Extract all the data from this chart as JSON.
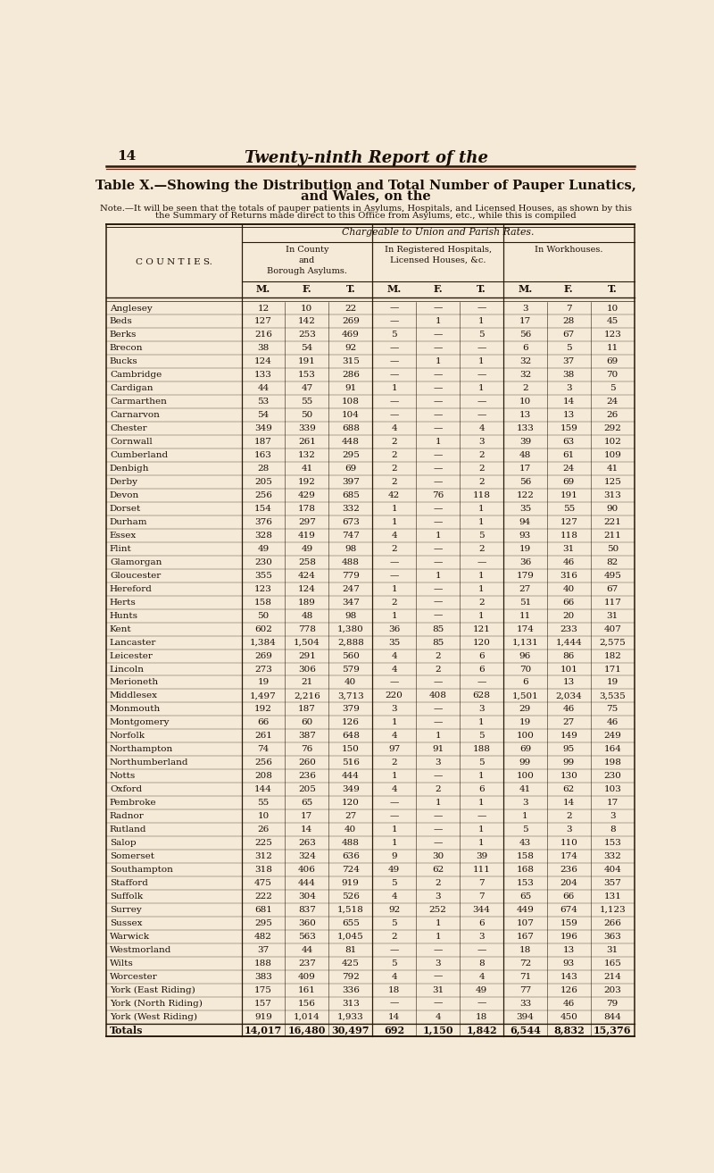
{
  "page_number": "14",
  "page_title": "Twenty-ninth Report of the",
  "table_title_line1": "Table X.—Showing the Distribution and Total Number of Pauper Lunatics,",
  "table_title_line2": "and Wales, on the",
  "note_line1": "Note.—It will be seen that the totals of pauper patients in Asylums, Hospitals, and Licensed Houses, as shown by this",
  "note_line2": "the Summary of Returns made direct to this Office from Asylums, etc., while this is compiled",
  "chargeable_header": "Chargeable to Union and Parish Rates.",
  "col_group1": [
    "In County",
    "and",
    "Borough Asylums."
  ],
  "col_group2": [
    "In Registered Hospitals,",
    "Licensed Houses, &c."
  ],
  "col_group3": [
    "In Workhouses."
  ],
  "counties": [
    "Anglesey",
    "Beds",
    "Berks",
    "Brecon",
    "Bucks",
    "Cambridge",
    "Cardigan",
    "Carmarthen",
    "Carnarvon",
    "Chester",
    "Cornwall",
    "Cumberland",
    "Denbigh",
    "Derby",
    "Devon",
    "Dorset",
    "Durham",
    "Essex",
    "Flint",
    "Glamorgan",
    "Gloucester",
    "Hereford",
    "Herts",
    "Hunts",
    "Kent",
    "Lancaster",
    "Leicester",
    "Lincoln",
    "Merioneth",
    "Middlesex",
    "Monmouth",
    "Montgomery",
    "Norfolk",
    "Northampton",
    "Northumberland",
    "Notts",
    "Oxford",
    "Pembroke",
    "Radnor",
    "Rutland",
    "Salop",
    "Somerset",
    "Southampton",
    "Stafford",
    "Suffolk",
    "Surrey",
    "Sussex",
    "Warwick",
    "Westmorland",
    "Wilts",
    "Worcester",
    "York (East Riding)",
    "York (North Riding)",
    "York (West Riding)",
    "Totals"
  ],
  "data": [
    [
      12,
      10,
      22,
      "-",
      "-",
      "-",
      3,
      7,
      10
    ],
    [
      127,
      142,
      269,
      "-",
      1,
      1,
      17,
      28,
      45
    ],
    [
      216,
      253,
      469,
      5,
      "-",
      5,
      56,
      67,
      123
    ],
    [
      38,
      54,
      92,
      "-",
      "-",
      "-",
      6,
      5,
      11
    ],
    [
      124,
      191,
      315,
      "-",
      1,
      1,
      32,
      37,
      69
    ],
    [
      133,
      153,
      286,
      "-",
      "-",
      "-",
      32,
      38,
      70
    ],
    [
      44,
      47,
      91,
      1,
      "-",
      1,
      2,
      3,
      5
    ],
    [
      53,
      55,
      108,
      "-",
      "-",
      "-",
      10,
      14,
      24
    ],
    [
      54,
      50,
      104,
      "-",
      "-",
      "-",
      13,
      13,
      26
    ],
    [
      349,
      339,
      688,
      4,
      "-",
      4,
      133,
      159,
      292
    ],
    [
      187,
      261,
      448,
      2,
      1,
      3,
      39,
      63,
      102
    ],
    [
      163,
      132,
      295,
      2,
      "-",
      2,
      48,
      61,
      109
    ],
    [
      28,
      41,
      69,
      2,
      "-",
      2,
      17,
      24,
      41
    ],
    [
      205,
      192,
      397,
      2,
      "-",
      2,
      56,
      69,
      125
    ],
    [
      256,
      429,
      685,
      42,
      76,
      118,
      122,
      191,
      313
    ],
    [
      154,
      178,
      332,
      1,
      "-",
      1,
      35,
      55,
      90
    ],
    [
      376,
      297,
      673,
      1,
      "-",
      1,
      94,
      127,
      221
    ],
    [
      328,
      419,
      747,
      4,
      1,
      5,
      93,
      118,
      211
    ],
    [
      49,
      49,
      98,
      2,
      "-",
      2,
      19,
      31,
      50
    ],
    [
      230,
      258,
      488,
      "-",
      "-",
      "-",
      36,
      46,
      82
    ],
    [
      355,
      424,
      779,
      "-",
      1,
      1,
      179,
      316,
      495
    ],
    [
      123,
      124,
      247,
      1,
      "-",
      1,
      27,
      40,
      67
    ],
    [
      158,
      189,
      347,
      2,
      "-",
      2,
      51,
      66,
      117
    ],
    [
      50,
      48,
      98,
      1,
      "-",
      1,
      11,
      20,
      31
    ],
    [
      602,
      778,
      1380,
      36,
      85,
      121,
      174,
      233,
      407
    ],
    [
      1384,
      1504,
      2888,
      35,
      85,
      120,
      1131,
      1444,
      2575
    ],
    [
      269,
      291,
      560,
      4,
      2,
      6,
      96,
      86,
      182
    ],
    [
      273,
      306,
      579,
      4,
      2,
      6,
      70,
      101,
      171
    ],
    [
      19,
      21,
      40,
      "-",
      "-",
      "-",
      6,
      13,
      19
    ],
    [
      1497,
      2216,
      3713,
      220,
      408,
      628,
      1501,
      2034,
      3535
    ],
    [
      192,
      187,
      379,
      3,
      "-",
      3,
      29,
      46,
      75
    ],
    [
      66,
      60,
      126,
      1,
      "-",
      1,
      19,
      27,
      46
    ],
    [
      261,
      387,
      648,
      4,
      1,
      5,
      100,
      149,
      249
    ],
    [
      74,
      76,
      150,
      97,
      91,
      188,
      69,
      95,
      164
    ],
    [
      256,
      260,
      516,
      2,
      3,
      5,
      99,
      99,
      198
    ],
    [
      208,
      236,
      444,
      1,
      "-",
      1,
      100,
      130,
      230
    ],
    [
      144,
      205,
      349,
      4,
      2,
      6,
      41,
      62,
      103
    ],
    [
      55,
      65,
      120,
      "-",
      1,
      1,
      3,
      14,
      17
    ],
    [
      10,
      17,
      27,
      "-",
      "-",
      "-",
      1,
      2,
      3
    ],
    [
      26,
      14,
      40,
      1,
      "-",
      1,
      5,
      3,
      8
    ],
    [
      225,
      263,
      488,
      1,
      "-",
      1,
      43,
      110,
      153
    ],
    [
      312,
      324,
      636,
      9,
      30,
      39,
      158,
      174,
      332
    ],
    [
      318,
      406,
      724,
      49,
      62,
      111,
      168,
      236,
      404
    ],
    [
      475,
      444,
      919,
      5,
      2,
      7,
      153,
      204,
      357
    ],
    [
      222,
      304,
      526,
      4,
      3,
      7,
      65,
      66,
      131
    ],
    [
      681,
      837,
      1518,
      92,
      252,
      344,
      449,
      674,
      1123
    ],
    [
      295,
      360,
      655,
      5,
      1,
      6,
      107,
      159,
      266
    ],
    [
      482,
      563,
      1045,
      2,
      1,
      3,
      167,
      196,
      363
    ],
    [
      37,
      44,
      81,
      "-",
      "-",
      "-",
      18,
      13,
      31
    ],
    [
      188,
      237,
      425,
      5,
      3,
      8,
      72,
      93,
      165
    ],
    [
      383,
      409,
      792,
      4,
      "-",
      4,
      71,
      143,
      214
    ],
    [
      175,
      161,
      336,
      18,
      31,
      49,
      77,
      126,
      203
    ],
    [
      157,
      156,
      313,
      "-",
      "-",
      "-",
      33,
      46,
      79
    ],
    [
      919,
      1014,
      1933,
      14,
      4,
      18,
      394,
      450,
      844
    ],
    [
      14017,
      16480,
      30497,
      692,
      1150,
      1842,
      6544,
      8832,
      15376
    ]
  ],
  "bg_color": "#f5ead8",
  "text_color": "#1a1008",
  "line_color": "#2a1a08",
  "red_line_color": "#8b1a00"
}
